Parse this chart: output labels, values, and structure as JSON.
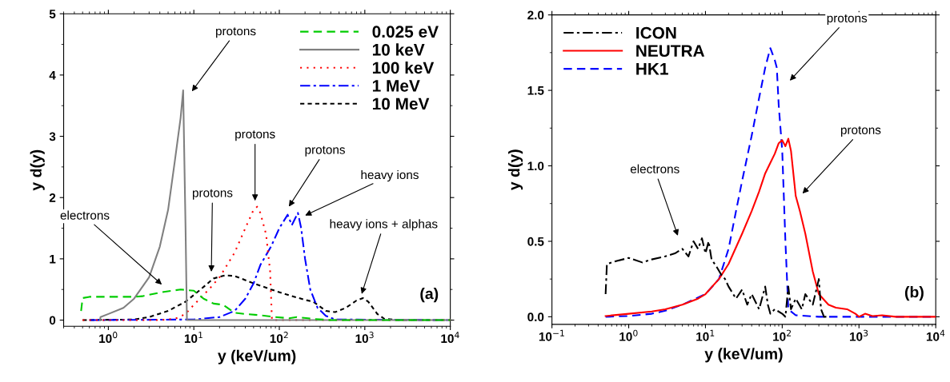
{
  "chart_data": [
    {
      "type": "line",
      "xlabel": "y (keV/um)",
      "ylabel": "y d(y)",
      "log": "x",
      "grid": false,
      "legend": "top right",
      "marker": "none",
      "xlim": [
        0.3,
        10000
      ],
      "xticks": [
        {
          "value": 1,
          "label": "10$^{0}$"
        },
        {
          "value": 10,
          "label": "10$^{1}$"
        },
        {
          "value": 100,
          "label": "10$^{2}$"
        },
        {
          "value": 1000,
          "label": "10$^{3}$"
        },
        {
          "value": 10000,
          "label": "10$^{4}$"
        }
      ],
      "ylim": [
        -0.1,
        5
      ],
      "yticks": [
        0,
        1,
        2,
        3,
        4,
        5
      ],
      "series": [
        {
          "name": "0.025 eV",
          "color": "#00cc00",
          "line_style": "dashed",
          "x": [
            0.48,
            0.5,
            0.6,
            1,
            2,
            2.5,
            4,
            7,
            10,
            13,
            17,
            22,
            30,
            40,
            60,
            90,
            130,
            160,
            250,
            400,
            10000
          ],
          "values": [
            0.15,
            0.36,
            0.38,
            0.38,
            0.38,
            0.39,
            0.45,
            0.5,
            0.48,
            0.35,
            0.27,
            0.25,
            0.12,
            0.1,
            0.08,
            0.05,
            0.03,
            0.05,
            0.02,
            0,
            0
          ]
        },
        {
          "name": "10 keV",
          "color": "#808080",
          "line_style": "solid",
          "x": [
            0.8,
            0.81,
            1,
            1.5,
            2,
            3,
            4,
            5,
            6,
            7,
            7.5,
            8,
            8.3,
            10000
          ],
          "values": [
            0,
            0.05,
            0.1,
            0.2,
            0.35,
            0.7,
            1.2,
            1.8,
            2.6,
            3.3,
            3.75,
            1.5,
            0,
            0
          ]
        },
        {
          "name": "100 keV",
          "color": "#ff0000",
          "line_style": "dotted",
          "x": [
            0.5,
            4,
            6,
            8,
            10,
            15,
            20,
            30,
            40,
            50,
            55,
            60,
            70,
            78,
            82,
            10000
          ],
          "values": [
            0,
            0,
            0.02,
            0.1,
            0.25,
            0.5,
            0.7,
            1.1,
            1.5,
            1.8,
            1.85,
            1.75,
            1.4,
            0.8,
            0,
            0
          ]
        },
        {
          "name": "1 MeV",
          "color": "#0000ff",
          "line_style": "dashdot",
          "x": [
            0.6,
            10,
            20,
            30,
            40,
            50,
            60,
            80,
            100,
            125,
            140,
            165,
            180,
            200,
            230,
            280,
            350,
            450,
            10000
          ],
          "values": [
            0,
            0.01,
            0.05,
            0.15,
            0.35,
            0.6,
            0.9,
            1.2,
            1.5,
            1.72,
            1.55,
            1.75,
            1.5,
            1.0,
            0.5,
            0.2,
            0.07,
            0.01,
            0
          ]
        },
        {
          "name": "10 MeV",
          "color": "#000000",
          "line_style": "short dashed",
          "x": [
            0.5,
            2,
            3,
            5,
            8,
            12,
            17,
            23,
            30,
            50,
            80,
            120,
            200,
            250,
            350,
            450,
            600,
            800,
            950,
            1100,
            1400,
            1700,
            2500,
            10000
          ],
          "values": [
            0,
            0.01,
            0.05,
            0.15,
            0.3,
            0.5,
            0.68,
            0.73,
            0.72,
            0.6,
            0.5,
            0.42,
            0.33,
            0.3,
            0.15,
            0.13,
            0.2,
            0.32,
            0.36,
            0.3,
            0.1,
            0.02,
            0,
            0
          ]
        }
      ],
      "annotations": [
        "protons",
        "protons",
        "protons",
        "heavy ions",
        "protons",
        "electrons",
        "heavy ions + alphas",
        "(a)"
      ]
    },
    {
      "type": "line",
      "xlabel": "y (keV/um)",
      "ylabel": "y d(y)",
      "log": "x",
      "grid": false,
      "legend": "top left",
      "marker": "none",
      "xlim": [
        0.1,
        10000
      ],
      "xticks": [
        {
          "value": 0.1,
          "label": "10$^{−1}$"
        },
        {
          "value": 1,
          "label": "10$^{0}$"
        },
        {
          "value": 10,
          "label": "10$^{1}$"
        },
        {
          "value": 100,
          "label": "10$^{2}$"
        },
        {
          "value": 1000,
          "label": "10$^{3}$"
        },
        {
          "value": 10000,
          "label": "10$^{4}$"
        }
      ],
      "ylim": [
        -0.05,
        2.0
      ],
      "yticks": [
        {
          "value": 0,
          "label": "0.0"
        },
        0.5,
        {
          "value": 1,
          "label": "1.0"
        },
        1.5,
        {
          "value": 2,
          "label": "2.0"
        }
      ],
      "series": [
        {
          "name": "ICON",
          "color": "#000000",
          "line_style": "dashdot",
          "x": [
            0.5,
            0.52,
            0.7,
            1,
            1.5,
            2,
            3,
            4,
            5,
            6,
            7,
            8,
            9,
            10,
            11,
            12,
            14,
            16,
            18,
            20,
            25,
            30,
            35,
            40,
            50,
            60,
            65,
            70,
            80,
            100,
            110,
            120,
            130,
            150,
            180,
            200,
            250,
            300,
            320,
            350,
            400
          ],
          "values": [
            0.15,
            0.35,
            0.37,
            0.39,
            0.36,
            0.38,
            0.4,
            0.42,
            0.45,
            0.4,
            0.5,
            0.45,
            0.52,
            0.42,
            0.5,
            0.38,
            0.33,
            0.28,
            0.25,
            0.2,
            0.12,
            0.18,
            0.08,
            0.15,
            0.05,
            0.2,
            0.08,
            0.02,
            0.05,
            0.02,
            0,
            0.2,
            0.05,
            0.12,
            0.05,
            0.15,
            0.08,
            0.25,
            0.05,
            0,
            0
          ]
        },
        {
          "name": "NEUTRA",
          "color": "#ff0000",
          "line_style": "solid",
          "x": [
            0.5,
            1,
            2,
            3,
            5,
            8,
            10,
            15,
            20,
            30,
            40,
            50,
            60,
            70,
            80,
            90,
            100,
            110,
            120,
            130,
            150,
            170,
            200,
            250,
            300,
            400,
            500,
            700,
            900,
            1000,
            1200,
            1500,
            2000,
            3000,
            10000
          ],
          "values": [
            0.005,
            0.02,
            0.035,
            0.05,
            0.08,
            0.12,
            0.15,
            0.25,
            0.35,
            0.55,
            0.7,
            0.83,
            0.95,
            1.02,
            1.08,
            1.15,
            1.17,
            1.13,
            1.18,
            1.1,
            0.8,
            0.7,
            0.55,
            0.3,
            0.15,
            0.08,
            0.06,
            0.05,
            0.02,
            0,
            0.02,
            0.005,
            0.01,
            0,
            0
          ]
        },
        {
          "name": "HK1",
          "color": "#0000ff",
          "line_style": "dashed",
          "x": [
            0.5,
            1,
            2,
            3,
            5,
            10,
            15,
            20,
            25,
            30,
            40,
            50,
            60,
            70,
            80,
            85,
            90,
            100,
            110,
            120,
            150,
            300,
            10000
          ],
          "values": [
            0,
            0.005,
            0.02,
            0.04,
            0.08,
            0.15,
            0.25,
            0.45,
            0.7,
            0.9,
            1.2,
            1.45,
            1.65,
            1.78,
            1.7,
            1.65,
            1.4,
            1.1,
            0.5,
            0.05,
            0.01,
            0,
            0
          ]
        }
      ],
      "annotations": [
        "electrons",
        "protons",
        "protons",
        "(b)"
      ]
    }
  ]
}
